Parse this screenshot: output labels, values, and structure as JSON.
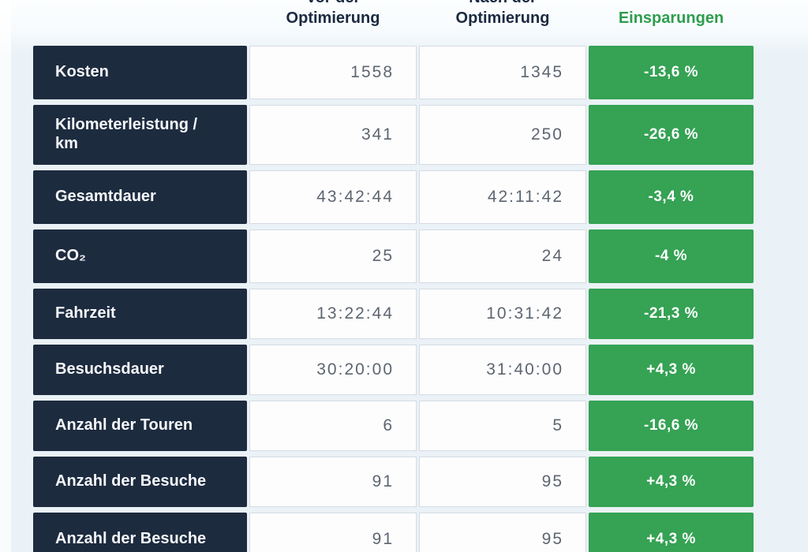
{
  "header": {
    "before_line1": "Vor der",
    "before_line2": "Optimierung",
    "after_line1": "Nach der",
    "after_line2": "Optimierung",
    "savings": "Einsparungen"
  },
  "colors": {
    "navy": "#1d2b3f",
    "green": "#35a254",
    "green_text": "#2e9d4d",
    "header_text": "#1b2a41",
    "value_text": "#5d6570",
    "page_bg": "#eaf2f7"
  },
  "rows": [
    {
      "label": "Kosten",
      "before": "1558",
      "after": "1345",
      "savings": "-13,6 %"
    },
    {
      "label": "Kilometerleistung /\nkm",
      "before": "341",
      "after": "250",
      "savings": "-26,6 %"
    },
    {
      "label": "Gesamtdauer",
      "before": "43:42:44",
      "after": "42:11:42",
      "savings": "-3,4 %"
    },
    {
      "label": "CO₂",
      "before": "25",
      "after": "24",
      "savings": "-4 %"
    },
    {
      "label": "Fahrzeit",
      "before": "13:22:44",
      "after": "10:31:42",
      "savings": "-21,3 %"
    },
    {
      "label": "Besuchsdauer",
      "before": "30:20:00",
      "after": "31:40:00",
      "savings": "+4,3 %"
    },
    {
      "label": "Anzahl der Touren",
      "before": "6",
      "after": "5",
      "savings": "-16,6 %"
    },
    {
      "label": "Anzahl der Besuche",
      "before": "91",
      "after": "95",
      "savings": "+4,3 %"
    },
    {
      "label": "Anzahl der Besuche",
      "before": "91",
      "after": "95",
      "savings": "+4,3 %"
    }
  ]
}
